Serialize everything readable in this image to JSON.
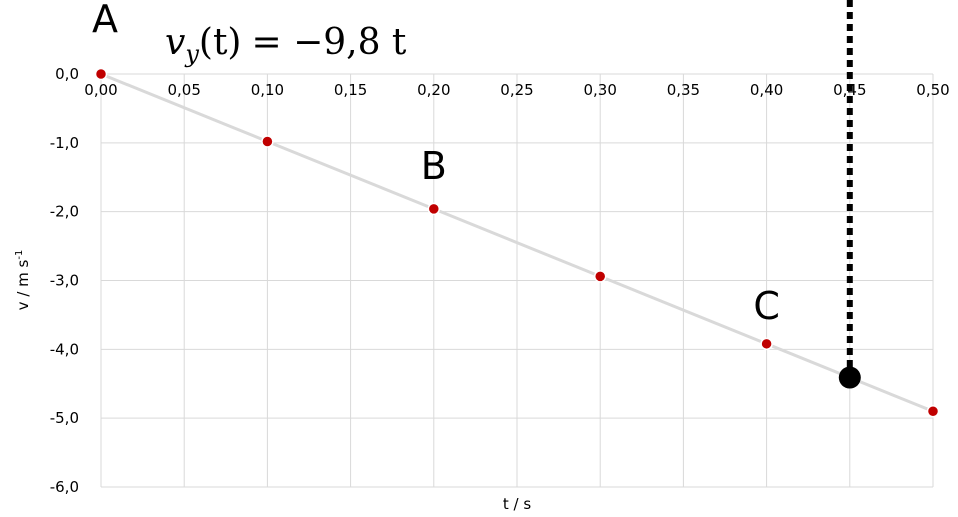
{
  "chart_data": {
    "type": "scatter",
    "xlabel": "t / s",
    "ylabel": "v / m s",
    "ylabel_superscript": "-1",
    "xlim": [
      0,
      0.5
    ],
    "ylim": [
      -6,
      0
    ],
    "x_ticks": [
      0,
      0.05,
      0.1,
      0.15,
      0.2,
      0.25,
      0.3,
      0.35,
      0.4,
      0.45,
      0.5
    ],
    "x_tick_labels": [
      "0,00",
      "0,05",
      "0,10",
      "0,15",
      "0,20",
      "0,25",
      "0,30",
      "0,35",
      "0,40",
      "0,45",
      "0,50"
    ],
    "y_ticks": [
      0,
      -1,
      -2,
      -3,
      -4,
      -5,
      -6
    ],
    "y_tick_labels": [
      "0,0",
      "-1,0",
      "-2,0",
      "-3,0",
      "-4,0",
      "-5,0",
      "-6,0"
    ],
    "grid": true,
    "equation": {
      "lhs_var": "v",
      "lhs_sub": "y",
      "lhs_arg": "(t)",
      "rhs": "= −9,8 t"
    },
    "series": [
      {
        "x": [
          0,
          0.1,
          0.2,
          0.3,
          0.4,
          0.5
        ],
        "y": [
          0,
          -0.98,
          -1.96,
          -2.94,
          -3.92,
          -4.9
        ],
        "marker_color": "#c00000",
        "line_color": "#d9d9d9"
      }
    ],
    "highlight_point": {
      "x": 0.45,
      "y": -4.41,
      "color": "#000000"
    },
    "vertical_marker": {
      "x": 0.45,
      "style": "dotted",
      "color": "#000000"
    },
    "point_labels": [
      {
        "text": "A",
        "x": 0.0,
        "y": 0.0
      },
      {
        "text": "B",
        "x": 0.2,
        "y": -1.96
      },
      {
        "text": "C",
        "x": 0.4,
        "y": -3.92
      }
    ]
  }
}
